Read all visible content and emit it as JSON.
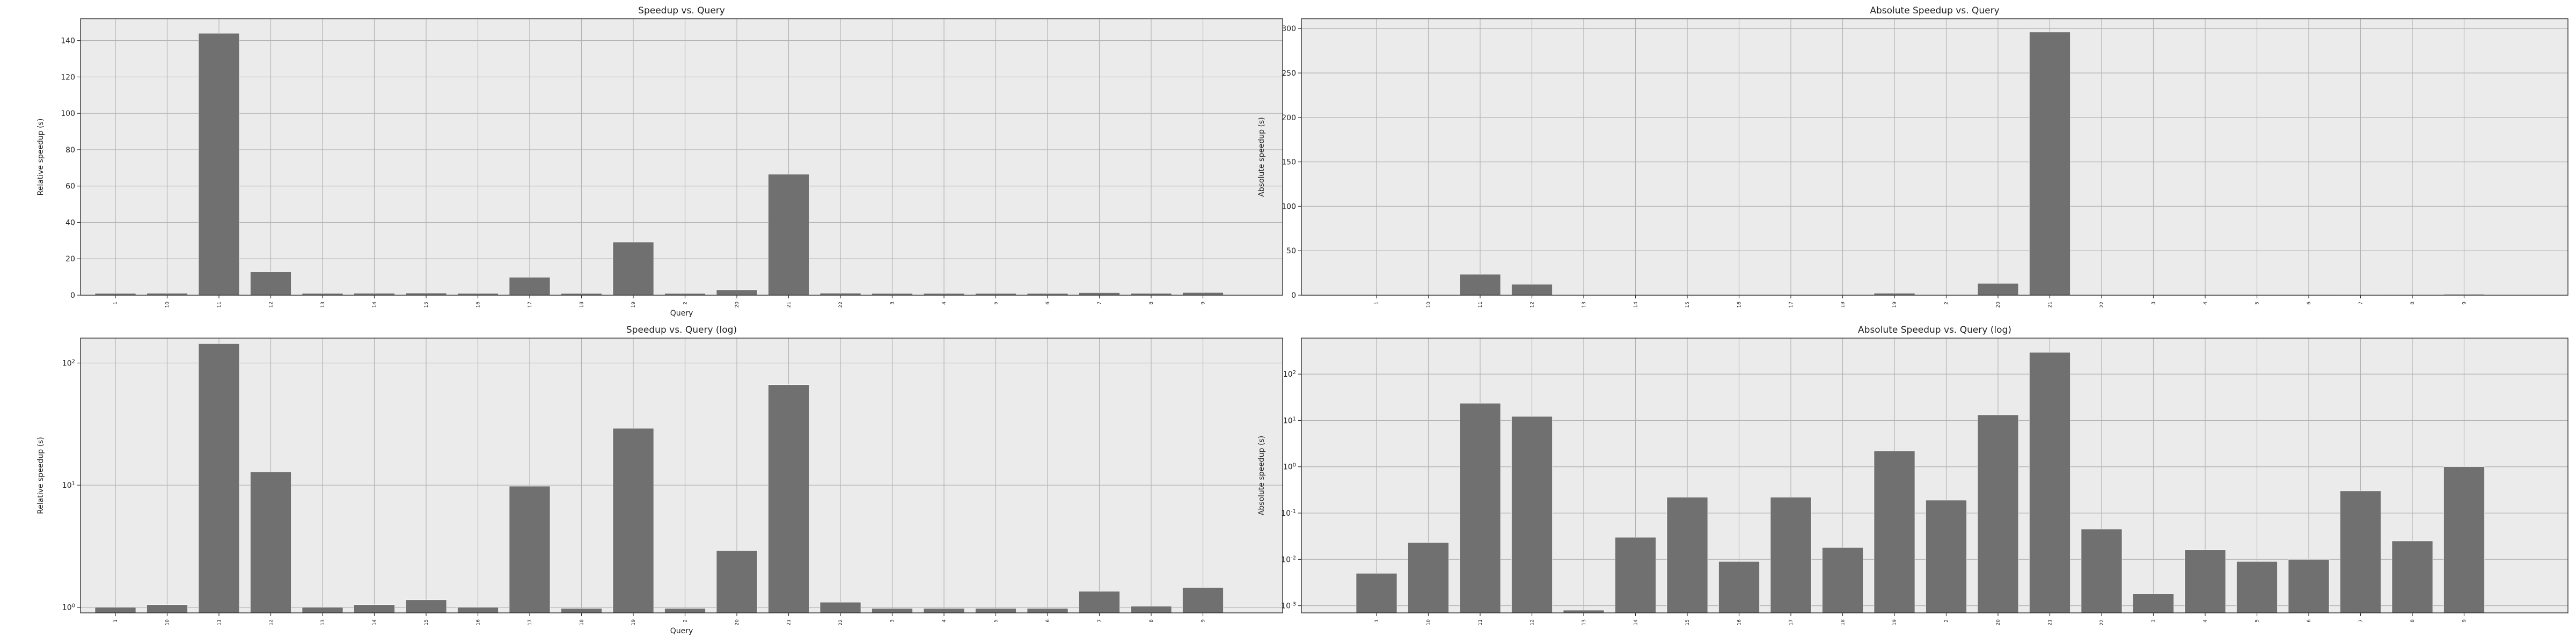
{
  "chart_data": [
    {
      "type": "bar",
      "title": "Speedup vs. Query",
      "xlabel": "Query",
      "ylabel": "Relative speedup (s)",
      "yscale": "linear",
      "ylim": [
        0,
        152
      ],
      "yticks": [
        0,
        20,
        40,
        60,
        80,
        100,
        120,
        140
      ],
      "grid": true,
      "bar_color": "#707070",
      "background_color": "#ebebeb",
      "categories": [
        "1",
        "10",
        "11",
        "12",
        "13",
        "14",
        "15",
        "16",
        "17",
        "18",
        "19",
        "2",
        "20",
        "21",
        "22",
        "3",
        "4",
        "5",
        "6",
        "7",
        "8",
        "9"
      ],
      "values": [
        1.0,
        1.05,
        144,
        12.8,
        1.0,
        1.05,
        1.15,
        1.0,
        9.8,
        0.98,
        29.2,
        0.98,
        2.9,
        66.5,
        1.1,
        0.98,
        0.98,
        0.98,
        0.98,
        1.35,
        1.02,
        1.45
      ]
    },
    {
      "type": "bar",
      "title": "Absolute Speedup vs. Query",
      "xlabel": "",
      "ylabel": "Absolute speedup (s)",
      "yscale": "linear",
      "ylim": [
        0,
        311
      ],
      "yticks": [
        0,
        50,
        100,
        150,
        200,
        250,
        300
      ],
      "grid": true,
      "bar_color": "#707070",
      "background_color": "#ebebeb",
      "categories": [
        "1",
        "10",
        "11",
        "12",
        "13",
        "14",
        "15",
        "16",
        "17",
        "18",
        "19",
        "2",
        "20",
        "21",
        "22",
        "3",
        "4",
        "5",
        "6",
        "7",
        "8",
        "9"
      ],
      "values": [
        0.005,
        0.023,
        23.5,
        12.2,
        0.0008,
        0.03,
        0.22,
        0.009,
        0.22,
        0.018,
        2.2,
        0.19,
        13.2,
        296,
        0.045,
        0.0018,
        0.016,
        0.009,
        0.01,
        0.3,
        0.025,
        1.0
      ]
    },
    {
      "type": "bar",
      "title": "Speedup vs. Query (log)",
      "xlabel": "Query",
      "ylabel": "Relative speedup (s)",
      "yscale": "log",
      "ylim": [
        0.9,
        160
      ],
      "yticks": [
        1,
        10,
        100
      ],
      "ytick_labels": [
        "10^0",
        "10^1",
        "10^2"
      ],
      "grid": true,
      "bar_color": "#707070",
      "background_color": "#ebebeb",
      "categories": [
        "1",
        "10",
        "11",
        "12",
        "13",
        "14",
        "15",
        "16",
        "17",
        "18",
        "19",
        "2",
        "20",
        "21",
        "22",
        "3",
        "4",
        "5",
        "6",
        "7",
        "8",
        "9"
      ],
      "values": [
        1.0,
        1.05,
        144,
        12.8,
        1.0,
        1.05,
        1.15,
        1.0,
        9.8,
        0.98,
        29.2,
        0.98,
        2.9,
        66.5,
        1.1,
        0.98,
        0.98,
        0.98,
        0.98,
        1.35,
        1.02,
        1.45
      ]
    },
    {
      "type": "bar",
      "title": "Absolute Speedup vs. Query (log)",
      "xlabel": "",
      "ylabel": "Absolute speedup (s)",
      "yscale": "log",
      "ylim": [
        0.0007,
        600
      ],
      "yticks": [
        0.001,
        0.01,
        0.1,
        1,
        10,
        100
      ],
      "ytick_labels": [
        "10^-3",
        "10^-2",
        "10^-1",
        "10^0",
        "10^1",
        "10^2"
      ],
      "grid": true,
      "bar_color": "#707070",
      "background_color": "#ebebeb",
      "categories": [
        "1",
        "10",
        "11",
        "12",
        "13",
        "14",
        "15",
        "16",
        "17",
        "18",
        "19",
        "2",
        "20",
        "21",
        "22",
        "3",
        "4",
        "5",
        "6",
        "7",
        "8",
        "9"
      ],
      "values": [
        0.005,
        0.023,
        23.5,
        12.2,
        0.0008,
        0.03,
        0.22,
        0.009,
        0.22,
        0.018,
        2.2,
        0.19,
        13.2,
        296,
        0.045,
        0.0018,
        0.016,
        0.009,
        0.01,
        0.3,
        0.025,
        1.0
      ]
    }
  ]
}
